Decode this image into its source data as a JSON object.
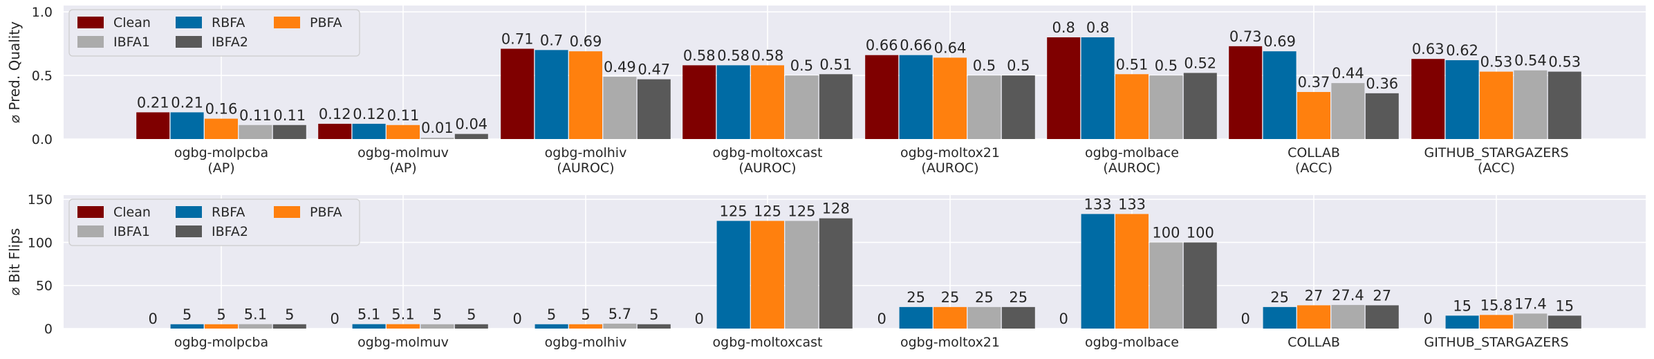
{
  "chart_data": [
    {
      "type": "bar",
      "ylabel": "⌀ Pred. Quality",
      "ylim": [
        0,
        1.05
      ],
      "yticks": [
        "0.0",
        "0.5",
        "1.0"
      ],
      "ytick_values": [
        0,
        0.5,
        1.0
      ],
      "categories": [
        [
          "ogbg-molpcba",
          "(AP)"
        ],
        [
          "ogbg-molmuv",
          "(AP)"
        ],
        [
          "ogbg-molhiv",
          "(AUROC)"
        ],
        [
          "ogbg-moltoxcast",
          "(AUROC)"
        ],
        [
          "ogbg-moltox21",
          "(AUROC)"
        ],
        [
          "ogbg-molbace",
          "(AUROC)"
        ],
        [
          "COLLAB",
          "(ACC)"
        ],
        [
          "GITHUB_STARGAZERS",
          "(ACC)"
        ]
      ],
      "legend_position": "top-left",
      "series": [
        {
          "name": "Clean",
          "color": "#7f0000",
          "values": [
            0.21,
            0.12,
            0.71,
            0.58,
            0.66,
            0.8,
            0.73,
            0.63
          ],
          "labels": [
            "0.21",
            "0.12",
            "0.71",
            "0.58",
            "0.66",
            "0.8",
            "0.73",
            "0.63"
          ]
        },
        {
          "name": "RBFA",
          "color": "#006ba4",
          "values": [
            0.21,
            0.12,
            0.7,
            0.58,
            0.66,
            0.8,
            0.69,
            0.62
          ],
          "labels": [
            "0.21",
            "0.12",
            "0.7",
            "0.58",
            "0.66",
            "0.8",
            "0.69",
            "0.62"
          ]
        },
        {
          "name": "PBFA",
          "color": "#ff800e",
          "values": [
            0.16,
            0.11,
            0.69,
            0.58,
            0.64,
            0.51,
            0.37,
            0.53
          ],
          "labels": [
            "0.16",
            "0.11",
            "0.69",
            "0.58",
            "0.64",
            "0.51",
            "0.37",
            "0.53"
          ]
        },
        {
          "name": "IBFA1",
          "color": "#ababab",
          "values": [
            0.11,
            0.01,
            0.49,
            0.5,
            0.5,
            0.5,
            0.44,
            0.54
          ],
          "labels": [
            "0.11",
            "0.01",
            "0.49",
            "0.5",
            "0.5",
            "0.5",
            "0.44",
            "0.54"
          ]
        },
        {
          "name": "IBFA2",
          "color": "#595959",
          "values": [
            0.11,
            0.04,
            0.47,
            0.51,
            0.5,
            0.52,
            0.36,
            0.53
          ],
          "labels": [
            "0.11",
            "0.04",
            "0.47",
            "0.51",
            "0.5",
            "0.52",
            "0.36",
            "0.53"
          ]
        }
      ]
    },
    {
      "type": "bar",
      "ylabel": "⌀ Bit Flips",
      "ylim": [
        0,
        155
      ],
      "yticks": [
        "0",
        "50",
        "100",
        "150"
      ],
      "ytick_values": [
        0,
        50,
        100,
        150
      ],
      "categories": [
        [
          "ogbg-molpcba"
        ],
        [
          "ogbg-molmuv"
        ],
        [
          "ogbg-molhiv"
        ],
        [
          "ogbg-moltoxcast"
        ],
        [
          "ogbg-moltox21"
        ],
        [
          "ogbg-molbace"
        ],
        [
          "COLLAB"
        ],
        [
          "GITHUB_STARGAZERS"
        ]
      ],
      "legend_position": "top-left",
      "series": [
        {
          "name": "Clean",
          "color": "#7f0000",
          "values": [
            0,
            0,
            0,
            0,
            0,
            0,
            0,
            0
          ],
          "labels": [
            "0",
            "0",
            "0",
            "0",
            "0",
            "0",
            "0",
            "0"
          ]
        },
        {
          "name": "RBFA",
          "color": "#006ba4",
          "values": [
            5,
            5.1,
            5,
            125,
            25,
            133,
            25,
            15
          ],
          "labels": [
            "5",
            "5.1",
            "5",
            "125",
            "25",
            "133",
            "25",
            "15"
          ]
        },
        {
          "name": "PBFA",
          "color": "#ff800e",
          "values": [
            5,
            5.1,
            5,
            125,
            25,
            133,
            27,
            15.8
          ],
          "labels": [
            "5",
            "5.1",
            "5",
            "125",
            "25",
            "133",
            "27",
            "15.8"
          ]
        },
        {
          "name": "IBFA1",
          "color": "#ababab",
          "values": [
            5.1,
            5,
            5.7,
            125,
            25,
            100,
            27.4,
            17.4
          ],
          "labels": [
            "5.1",
            "5",
            "5.7",
            "125",
            "25",
            "100",
            "27.4",
            "17.4"
          ]
        },
        {
          "name": "IBFA2",
          "color": "#595959",
          "values": [
            5,
            5,
            5,
            128,
            25,
            100,
            27,
            15
          ],
          "labels": [
            "5",
            "5",
            "5",
            "128",
            "25",
            "100",
            "27",
            "15"
          ]
        }
      ]
    }
  ]
}
